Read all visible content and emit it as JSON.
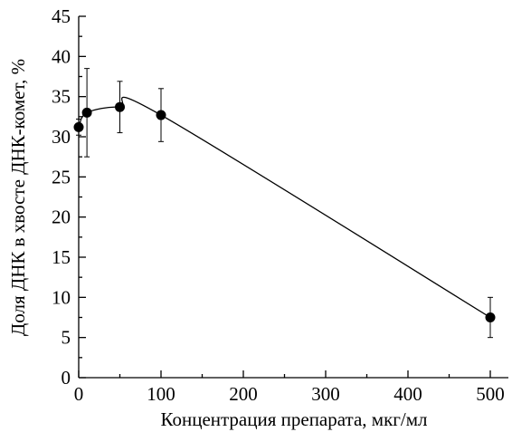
{
  "chart_data": {
    "type": "line",
    "title": "",
    "xlabel": "Концентрация препарата, мкг/мл",
    "ylabel": "Доля ДНК в хвосте ДНК-комет, %",
    "xlim": [
      0,
      500
    ],
    "ylim": [
      0,
      45
    ],
    "xticks": [
      0,
      100,
      200,
      300,
      400,
      500
    ],
    "xtick_labels": [
      "0",
      "100",
      "200",
      "300",
      "400",
      "500"
    ],
    "yticks": [
      0,
      5,
      10,
      15,
      20,
      25,
      30,
      35,
      40,
      45
    ],
    "ytick_labels": [
      "0",
      "5",
      "10",
      "15",
      "20",
      "25",
      "30",
      "35",
      "40",
      "45"
    ],
    "grid": false,
    "series": [
      {
        "x": [
          0,
          10,
          50,
          100,
          500
        ],
        "y": [
          31.2,
          33.0,
          33.7,
          32.7,
          7.5
        ],
        "error": [
          1.0,
          5.5,
          3.2,
          3.3,
          2.5
        ]
      }
    ]
  }
}
